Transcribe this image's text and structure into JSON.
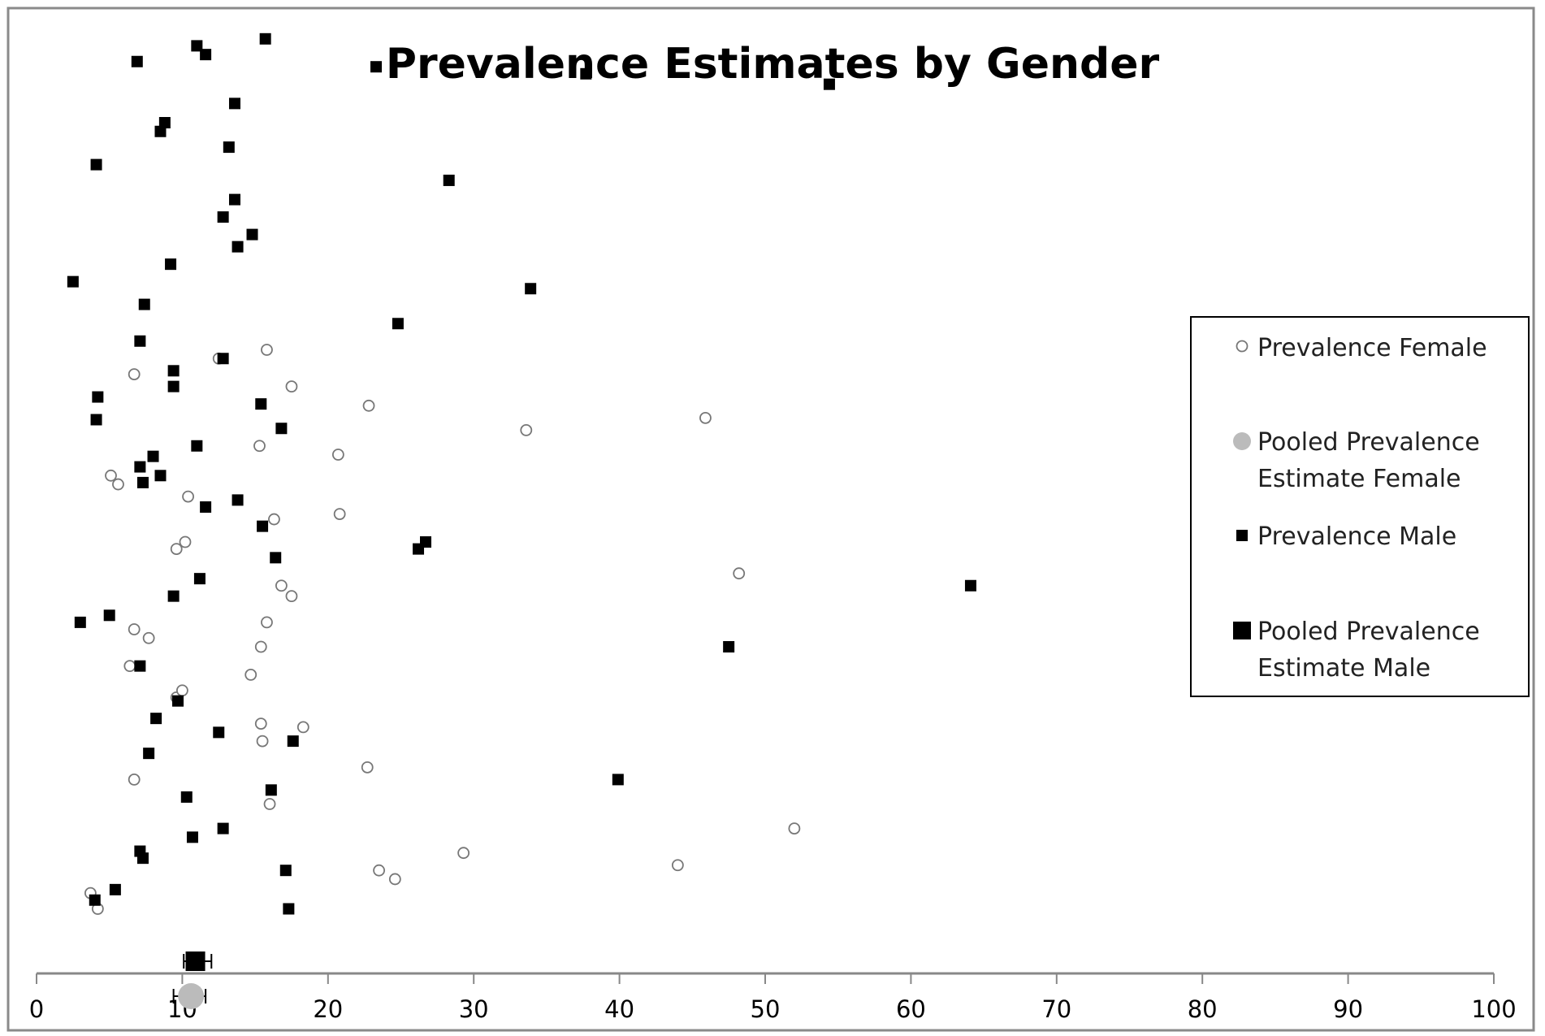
{
  "chart_data": {
    "type": "scatter",
    "title": "Prevalence Estimates by Gender",
    "xlim": [
      0,
      100
    ],
    "x_ticks": [
      "0",
      "10",
      "20",
      "30",
      "40",
      "50",
      "60",
      "70",
      "80",
      "90",
      "100"
    ],
    "y_axis_labels": false,
    "grid": false,
    "legend_position": "right",
    "legend": [
      {
        "id": "female",
        "lines": [
          "Prevalence Female"
        ],
        "marker": "open-circle"
      },
      {
        "id": "pooled-female",
        "lines": [
          "Pooled Prevalence",
          "Estimate Female"
        ],
        "marker": "grey-disc"
      },
      {
        "id": "male",
        "lines": [
          "Prevalence Male"
        ],
        "marker": "filled-square"
      },
      {
        "id": "pooled-male",
        "lines": [
          "Pooled Prevalence",
          "Estimate Male"
        ],
        "marker": "large-filled-square"
      }
    ],
    "series": [
      {
        "name": "Prevalence Female",
        "marker": "open-circle",
        "color": "#777777",
        "x": [
          4.2,
          3.7,
          24.6,
          23.5,
          44.0,
          29.3,
          52.0,
          16.0,
          6.7,
          22.7,
          15.5,
          18.3,
          15.4,
          9.6,
          10.0,
          14.7,
          6.4,
          15.4,
          7.7,
          6.7,
          15.8,
          17.5,
          16.8,
          48.2,
          9.6,
          10.2,
          16.3,
          20.8,
          10.4,
          5.6,
          5.1,
          20.7,
          15.3,
          33.6,
          45.9,
          22.8,
          17.5,
          6.7,
          12.5,
          15.8
        ],
        "y": [
          3.0,
          3.9,
          4.7,
          5.2,
          5.5,
          6.2,
          7.6,
          9.0,
          10.4,
          11.1,
          12.6,
          13.4,
          13.6,
          15.1,
          15.5,
          16.4,
          16.9,
          18.0,
          18.5,
          19.0,
          19.4,
          20.9,
          21.5,
          22.2,
          23.6,
          24.0,
          25.3,
          25.6,
          26.6,
          27.3,
          27.8,
          29.0,
          29.5,
          30.4,
          31.1,
          31.8,
          32.9,
          33.6,
          34.5,
          35.0
        ]
      },
      {
        "name": "Prevalence Male",
        "marker": "filled-square",
        "color": "#000000",
        "x": [
          4.0,
          17.3,
          5.4,
          17.1,
          7.3,
          7.1,
          10.7,
          12.8,
          16.1,
          39.9,
          10.3,
          7.7,
          17.6,
          12.5,
          8.2,
          9.7,
          7.1,
          47.5,
          3.0,
          5.0,
          9.4,
          64.1,
          11.2,
          16.4,
          26.2,
          26.7,
          15.5,
          11.6,
          13.8,
          7.3,
          8.5,
          7.1,
          8.0,
          11.0,
          16.8,
          4.1,
          15.4,
          9.4,
          4.2,
          9.4,
          12.8,
          7.1,
          24.8,
          7.4,
          33.9,
          2.5,
          9.2,
          13.8,
          14.8,
          12.8,
          13.6,
          28.3,
          4.1,
          13.2,
          8.5,
          8.8,
          13.6,
          54.4,
          37.7,
          6.9,
          23.3,
          11.6,
          11.0,
          15.7
        ],
        "y": [
          3.5,
          3.0,
          4.1,
          5.2,
          5.9,
          6.3,
          7.1,
          7.6,
          9.8,
          10.4,
          9.4,
          11.9,
          12.6,
          13.1,
          13.9,
          14.9,
          16.9,
          18.0,
          19.4,
          19.8,
          20.9,
          21.5,
          21.9,
          23.1,
          23.6,
          24.0,
          24.9,
          26.0,
          26.4,
          27.4,
          27.8,
          28.3,
          28.9,
          29.5,
          30.5,
          31.0,
          31.9,
          32.9,
          32.3,
          33.8,
          34.5,
          35.5,
          36.5,
          37.6,
          38.5,
          38.9,
          39.9,
          40.9,
          41.6,
          42.6,
          43.6,
          44.7,
          45.6,
          46.6,
          47.5,
          48.0,
          49.1,
          50.2,
          50.8,
          51.5,
          51.2,
          51.9,
          52.4,
          52.8
        ]
      }
    ],
    "pooled_estimates": [
      {
        "name": "Pooled Prevalence Estimate Male",
        "marker": "large-filled-square",
        "color": "#000000",
        "x": 10.9,
        "ci": [
          10.1,
          12.0
        ],
        "y": 0.0
      },
      {
        "name": "Pooled Prevalence Estimate Female",
        "marker": "grey-disc",
        "color": "#bbbbbb",
        "x": 10.6,
        "ci": [
          9.4,
          11.6
        ],
        "y": -2.0
      }
    ]
  }
}
